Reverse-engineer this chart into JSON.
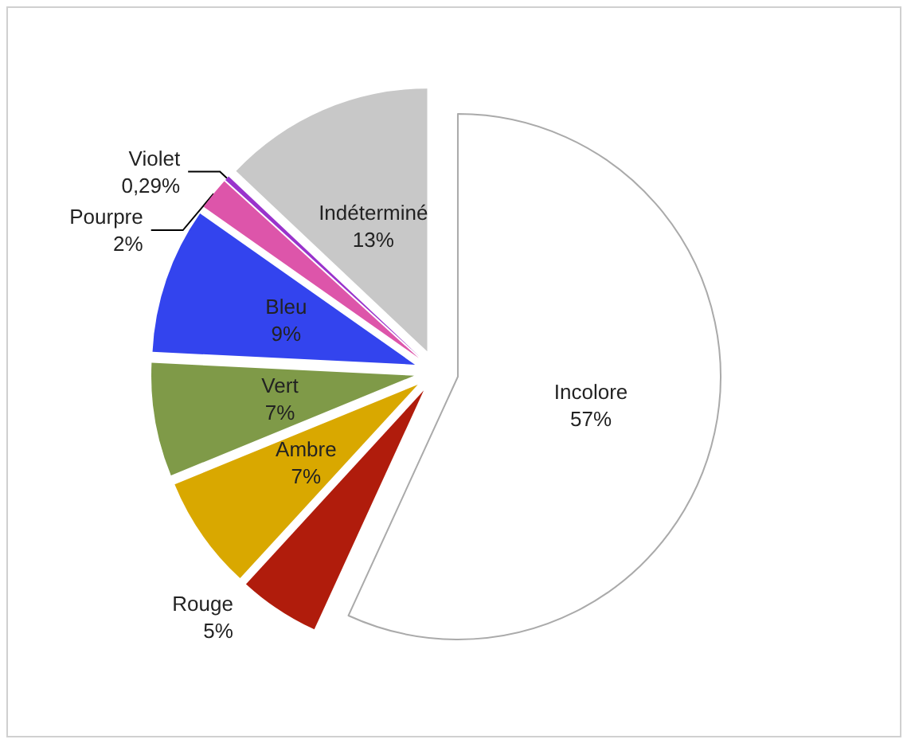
{
  "chart_data": {
    "type": "pie",
    "categories": [
      "Incolore",
      "Rouge",
      "Ambre",
      "Vert",
      "Bleu",
      "Pourpre",
      "Violet",
      "Indéterminé"
    ],
    "values": [
      57,
      5,
      7,
      7,
      9,
      2,
      0.29,
      13
    ],
    "value_labels": [
      "57%",
      "5%",
      "7%",
      "7%",
      "9%",
      "2%",
      "0,29%",
      "13%"
    ],
    "colors": [
      "#ffffff",
      "#b01c0c",
      "#d9a800",
      "#7f9a48",
      "#3344ee",
      "#dd55aa",
      "#9933cc",
      "#c8c8c8"
    ],
    "legend": false
  }
}
